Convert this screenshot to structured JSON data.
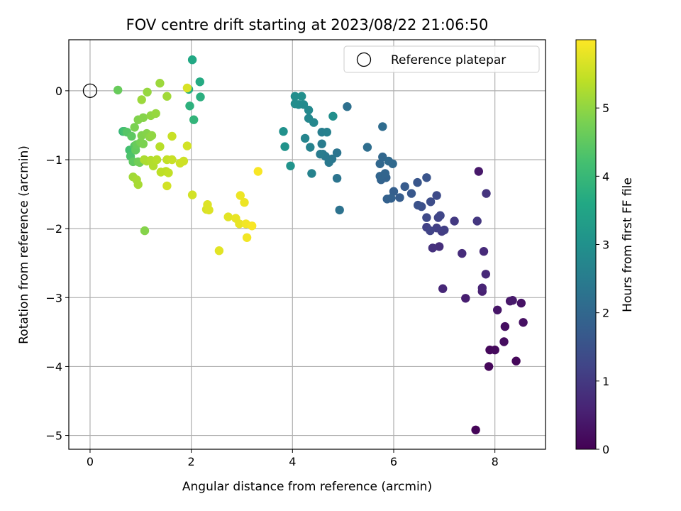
{
  "chart_data": {
    "type": "scatter",
    "title": "FOV centre drift starting at 2023/08/22 21:06:50",
    "xlabel": "Angular distance from reference (arcmin)",
    "ylabel": "Rotation from reference (arcmin)",
    "xlim": [
      -0.42,
      9.0
    ],
    "ylim": [
      -5.2,
      0.74
    ],
    "xticks": [
      0,
      2,
      4,
      6,
      8
    ],
    "yticks": [
      0,
      -1,
      -2,
      -3,
      -4,
      -5
    ],
    "grid": true,
    "legend": {
      "placement": "top-right",
      "entries": [
        "Reference platepar"
      ]
    },
    "reference_point": {
      "x": 0,
      "y": 0
    },
    "colorbar": {
      "label": "Hours from first FF file",
      "range": [
        0,
        6.0
      ],
      "ticks": [
        0,
        1,
        2,
        3,
        4,
        5
      ],
      "colormap": "viridis"
    },
    "points": [
      [
        7.62,
        -4.92,
        0.05
      ],
      [
        7.88,
        -4.0,
        0.1
      ],
      [
        8.42,
        -3.92,
        0.1
      ],
      [
        7.9,
        -3.76,
        0.12
      ],
      [
        8.0,
        -3.76,
        0.15
      ],
      [
        8.18,
        -3.64,
        0.2
      ],
      [
        8.2,
        -3.42,
        0.22
      ],
      [
        8.56,
        -3.36,
        0.25
      ],
      [
        8.52,
        -3.08,
        0.3
      ],
      [
        8.05,
        -3.18,
        0.35
      ],
      [
        8.3,
        -3.05,
        0.38
      ],
      [
        8.35,
        -3.04,
        0.42
      ],
      [
        7.42,
        -3.01,
        0.5
      ],
      [
        7.75,
        -2.91,
        0.55
      ],
      [
        7.75,
        -2.86,
        0.6
      ],
      [
        6.97,
        -2.87,
        0.65
      ],
      [
        7.82,
        -2.66,
        0.7
      ],
      [
        7.35,
        -2.36,
        0.75
      ],
      [
        7.78,
        -2.33,
        0.72
      ],
      [
        6.9,
        -2.26,
        0.8
      ],
      [
        6.77,
        -2.28,
        0.85
      ],
      [
        7.68,
        -1.17,
        0.4
      ],
      [
        7.83,
        -1.49,
        0.9
      ],
      [
        7.65,
        -1.89,
        0.95
      ],
      [
        7.2,
        -1.89,
        1.0
      ],
      [
        6.95,
        -2.04,
        1.05
      ],
      [
        7.0,
        -2.02,
        1.1
      ],
      [
        6.85,
        -1.99,
        1.12
      ],
      [
        6.65,
        -1.98,
        1.15
      ],
      [
        6.72,
        -2.03,
        1.2
      ],
      [
        6.88,
        -1.84,
        1.22
      ],
      [
        6.92,
        -1.81,
        1.25
      ],
      [
        6.65,
        -1.84,
        1.3
      ],
      [
        6.85,
        -1.52,
        1.35
      ],
      [
        6.73,
        -1.61,
        1.4
      ],
      [
        6.55,
        -1.68,
        1.45
      ],
      [
        6.48,
        -1.66,
        1.5
      ],
      [
        6.65,
        -1.26,
        1.55
      ],
      [
        6.47,
        -1.33,
        1.6
      ],
      [
        6.35,
        -1.49,
        1.65
      ],
      [
        6.22,
        -1.39,
        1.7
      ],
      [
        6.12,
        -1.55,
        1.75
      ],
      [
        6.0,
        -1.46,
        1.8
      ],
      [
        5.95,
        -1.56,
        1.85
      ],
      [
        5.87,
        -1.57,
        1.85
      ],
      [
        5.85,
        -1.26,
        1.9
      ],
      [
        5.75,
        -1.29,
        1.9
      ],
      [
        5.73,
        -1.24,
        1.95
      ],
      [
        5.83,
        -1.2,
        1.95
      ],
      [
        5.73,
        -1.06,
        2.0
      ],
      [
        5.78,
        -0.96,
        2.0
      ],
      [
        5.9,
        -1.02,
        2.05
      ],
      [
        5.98,
        -1.06,
        2.05
      ],
      [
        5.78,
        -0.52,
        2.1
      ],
      [
        5.48,
        -0.82,
        2.15
      ],
      [
        5.08,
        -0.23,
        2.2
      ],
      [
        4.93,
        -1.73,
        2.25
      ],
      [
        4.88,
        -1.27,
        2.3
      ],
      [
        4.88,
        -0.9,
        2.3
      ],
      [
        4.78,
        -0.99,
        2.35
      ],
      [
        4.72,
        -1.04,
        2.4
      ],
      [
        4.65,
        -0.95,
        2.4
      ],
      [
        4.6,
        -0.92,
        2.45
      ],
      [
        4.55,
        -0.92,
        2.5
      ],
      [
        4.58,
        -0.77,
        2.5
      ],
      [
        4.58,
        -0.6,
        2.55
      ],
      [
        4.68,
        -0.6,
        2.6
      ],
      [
        4.38,
        -1.2,
        2.65
      ],
      [
        4.35,
        -0.82,
        2.65
      ],
      [
        4.25,
        -0.69,
        2.7
      ],
      [
        4.42,
        -0.46,
        2.75
      ],
      [
        4.32,
        -0.4,
        2.75
      ],
      [
        4.32,
        -0.28,
        2.8
      ],
      [
        4.22,
        -0.2,
        2.85
      ],
      [
        4.12,
        -0.2,
        2.85
      ],
      [
        4.05,
        -0.19,
        2.9
      ],
      [
        4.05,
        -0.08,
        2.9
      ],
      [
        4.18,
        -0.08,
        2.95
      ],
      [
        4.8,
        -0.37,
        2.95
      ],
      [
        3.82,
        -0.59,
        3.0
      ],
      [
        3.85,
        -0.81,
        3.05
      ],
      [
        3.96,
        -1.09,
        3.05
      ],
      [
        2.02,
        0.45,
        3.6
      ],
      [
        2.17,
        0.13,
        3.65
      ],
      [
        1.95,
        0.02,
        3.7
      ],
      [
        2.18,
        -0.09,
        3.75
      ],
      [
        1.97,
        -0.22,
        3.8
      ],
      [
        2.05,
        -0.42,
        3.9
      ],
      [
        0.55,
        0.01,
        4.6
      ],
      [
        0.65,
        -0.59,
        4.0
      ],
      [
        0.68,
        -0.59,
        4.2
      ],
      [
        0.73,
        -0.6,
        4.4
      ],
      [
        0.82,
        -0.66,
        4.5
      ],
      [
        0.78,
        -0.86,
        4.2
      ],
      [
        0.8,
        -0.95,
        4.3
      ],
      [
        0.88,
        -0.8,
        4.4
      ],
      [
        0.85,
        -1.03,
        4.5
      ],
      [
        0.9,
        -0.86,
        4.55
      ],
      [
        0.92,
        -0.78,
        4.6
      ],
      [
        0.95,
        -1.03,
        4.65
      ],
      [
        0.98,
        -1.04,
        4.7
      ],
      [
        1.0,
        -0.75,
        4.75
      ],
      [
        1.05,
        -0.77,
        4.8
      ],
      [
        0.88,
        -0.53,
        4.8
      ],
      [
        0.95,
        -0.42,
        4.85
      ],
      [
        1.02,
        -0.65,
        4.85
      ],
      [
        1.05,
        -0.39,
        4.9
      ],
      [
        1.12,
        -0.62,
        4.9
      ],
      [
        1.18,
        -0.67,
        4.95
      ],
      [
        1.22,
        -0.65,
        5.0
      ],
      [
        1.2,
        -0.36,
        5.0
      ],
      [
        1.3,
        -0.33,
        5.05
      ],
      [
        1.13,
        -0.02,
        5.05
      ],
      [
        1.02,
        -0.13,
        5.1
      ],
      [
        1.38,
        0.11,
        5.1
      ],
      [
        1.52,
        -0.08,
        5.15
      ],
      [
        0.85,
        -1.25,
        5.15
      ],
      [
        0.92,
        -1.29,
        5.2
      ],
      [
        0.95,
        -1.36,
        5.2
      ],
      [
        1.07,
        -1.0,
        5.25
      ],
      [
        1.12,
        -1.02,
        5.25
      ],
      [
        1.2,
        -1.01,
        5.3
      ],
      [
        1.25,
        -1.09,
        5.3
      ],
      [
        1.32,
        -1.0,
        5.35
      ],
      [
        1.38,
        -0.81,
        5.35
      ],
      [
        1.4,
        -1.18,
        5.4
      ],
      [
        1.5,
        -1.17,
        5.4
      ],
      [
        1.52,
        -1.0,
        5.45
      ],
      [
        1.55,
        -1.19,
        5.45
      ],
      [
        1.62,
        -0.66,
        5.5
      ],
      [
        1.62,
        -1.0,
        5.5
      ],
      [
        1.78,
        -1.05,
        5.55
      ],
      [
        1.85,
        -1.02,
        5.55
      ],
      [
        1.92,
        -0.8,
        5.6
      ],
      [
        1.52,
        -1.38,
        5.6
      ],
      [
        1.08,
        -2.03,
        4.9
      ],
      [
        2.02,
        -1.51,
        5.6
      ],
      [
        1.92,
        0.04,
        5.65
      ],
      [
        2.3,
        -1.72,
        5.65
      ],
      [
        2.35,
        -1.73,
        5.7
      ],
      [
        2.32,
        -1.65,
        5.7
      ],
      [
        2.55,
        -2.32,
        5.75
      ],
      [
        2.73,
        -1.83,
        5.75
      ],
      [
        2.88,
        -1.85,
        5.8
      ],
      [
        2.95,
        -1.93,
        5.8
      ],
      [
        2.97,
        -1.52,
        5.85
      ],
      [
        3.05,
        -1.62,
        5.85
      ],
      [
        3.08,
        -1.93,
        5.9
      ],
      [
        3.1,
        -2.13,
        5.9
      ],
      [
        3.2,
        -1.96,
        5.95
      ],
      [
        3.32,
        -1.17,
        5.95
      ]
    ]
  }
}
